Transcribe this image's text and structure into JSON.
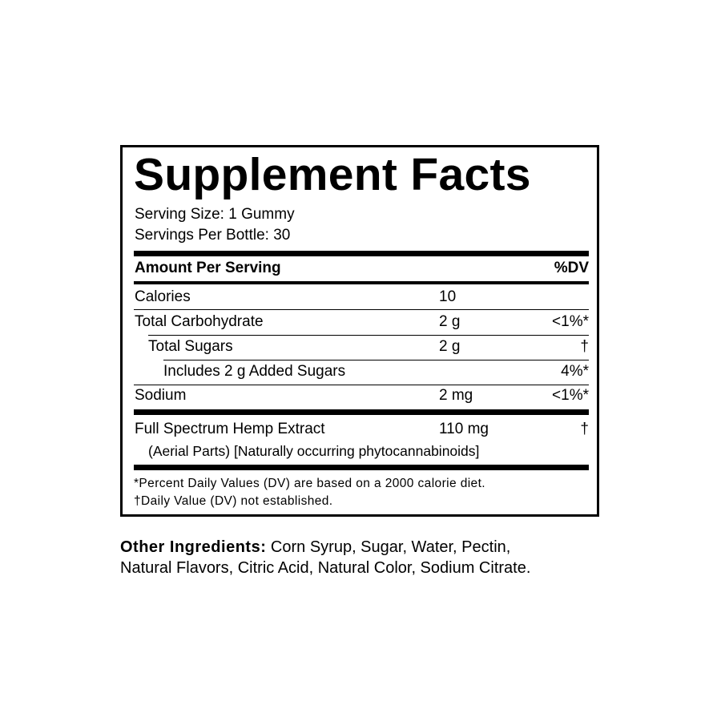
{
  "title": "Supplement Facts",
  "serving_size": "Serving Size: 1 Gummy",
  "servings_per": "Servings Per Bottle: 30",
  "header": {
    "amount": "Amount Per Serving",
    "dv": "%DV"
  },
  "rows": [
    {
      "name": "Calories",
      "amount": "10",
      "dv": ""
    },
    {
      "name": "Total Carbohydrate",
      "amount": "2 g",
      "dv": "<1%*"
    },
    {
      "name": "Total Sugars",
      "amount": "2 g",
      "dv": "†"
    },
    {
      "name": "Includes 2 g Added Sugars",
      "amount": "",
      "dv": "4%*"
    },
    {
      "name": "Sodium",
      "amount": "2 mg",
      "dv": "<1%*"
    },
    {
      "name": "Full Spectrum Hemp Extract",
      "amount": "110 mg",
      "dv": "†",
      "sub": "(Aerial Parts) [Naturally occurring phytocannabinoids]"
    }
  ],
  "footnotes": [
    "*Percent Daily Values (DV) are based on a 2000 calorie diet.",
    "†Daily Value (DV) not established."
  ],
  "other_ingredients": {
    "label": "Other Ingredients:",
    "line1": " Corn Syrup, Sugar, Water, Pectin,",
    "line2": "Natural Flavors, Citric Acid, Natural Color, Sodium Citrate."
  }
}
